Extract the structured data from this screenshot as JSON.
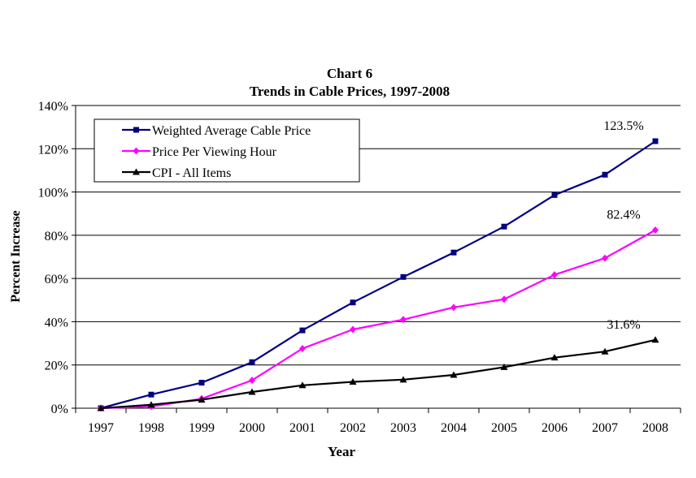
{
  "chart_data": {
    "type": "line",
    "title": "Chart 6",
    "subtitle": "Trends in Cable Prices, 1997-2008",
    "xlabel": "Year",
    "ylabel": "Percent Increase",
    "x": [
      "1997",
      "1998",
      "1999",
      "2000",
      "2001",
      "2002",
      "2003",
      "2004",
      "2005",
      "2006",
      "2007",
      "2008"
    ],
    "ylim": [
      0,
      140
    ],
    "yticks": [
      "0%",
      "20%",
      "40%",
      "60%",
      "80%",
      "100%",
      "120%",
      "140%"
    ],
    "y_tick_values": [
      0,
      20,
      40,
      60,
      80,
      100,
      120,
      140
    ],
    "grid": true,
    "legend_position": "top-left",
    "series": [
      {
        "name": "Weighted Average Cable Price",
        "color": "#000080",
        "marker": "square",
        "values": [
          0,
          6.3,
          11.8,
          21.3,
          36.0,
          48.9,
          60.7,
          72.0,
          84.0,
          98.6,
          108.0,
          123.5
        ]
      },
      {
        "name": "Price Per Viewing Hour",
        "color": "#FF00FF",
        "marker": "diamond",
        "values": [
          0,
          0.8,
          4.4,
          12.9,
          27.6,
          36.4,
          41.0,
          46.6,
          50.4,
          61.7,
          69.4,
          82.4
        ]
      },
      {
        "name": "CPI - All Items",
        "color": "#000000",
        "marker": "triangle",
        "values": [
          0,
          1.6,
          3.9,
          7.5,
          10.6,
          12.2,
          13.2,
          15.4,
          19.0,
          23.4,
          26.2,
          31.6
        ]
      }
    ],
    "annotations": [
      {
        "text": "123.5%",
        "x": "2008",
        "y": 123.5
      },
      {
        "text": "82.4%",
        "x": "2008",
        "y": 82.4
      },
      {
        "text": "31.6%",
        "x": "2008",
        "y": 31.6
      }
    ]
  }
}
